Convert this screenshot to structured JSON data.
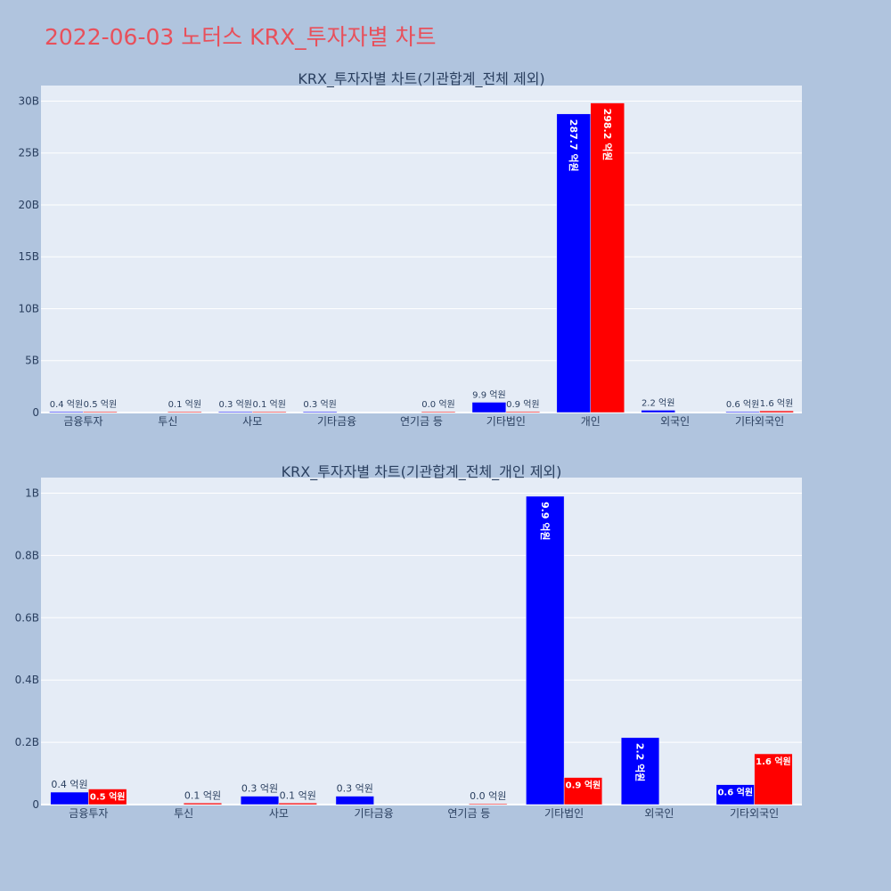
{
  "page_title": "2022-06-03 노터스 KRX_투자자별 차트",
  "colors": {
    "page_bg": "#b0c4de",
    "plot_bg": "#e5ecf6",
    "buy": "#0000ff",
    "sell": "#ff0000",
    "title": "#e8505b",
    "text": "#2a3f5f"
  },
  "chart_data": [
    {
      "type": "bar",
      "title": "KRX_투자자별 차트(기관합계_전체 제외)",
      "categories": [
        "금융투자",
        "투신",
        "사모",
        "기타금융",
        "연기금 등",
        "기타법인",
        "개인",
        "외국인",
        "기타외국인"
      ],
      "y_ticks": [
        0,
        5,
        10,
        15,
        20,
        25,
        30
      ],
      "y_tick_labels": [
        "0",
        "5B",
        "10B",
        "15B",
        "20B",
        "25B",
        "30B"
      ],
      "ylim": [
        0,
        31.5
      ],
      "y_unit": "B",
      "series": [
        {
          "color": "#0000ff",
          "values": [
            0.04,
            null,
            0.03,
            0.03,
            null,
            0.99,
            28.77,
            0.22,
            0.06
          ],
          "labels": [
            "0.4 억원",
            "",
            "0.3 억원",
            "0.3 억원",
            "",
            "9.9 억원",
            "287.7 억원",
            "2.2 억원",
            "0.6 억원"
          ]
        },
        {
          "color": "#ff0000",
          "values": [
            0.05,
            0.01,
            0.01,
            null,
            0.0,
            0.09,
            29.82,
            null,
            0.16
          ],
          "labels": [
            "0.5 억원",
            "0.1 억원",
            "0.1 억원",
            "",
            "0.0 억원",
            "0.9 억원",
            "298.2 억원",
            "",
            "1.6 억원"
          ]
        }
      ]
    },
    {
      "type": "bar",
      "title": "KRX_투자자별 차트(기관합계_전체_개인 제외)",
      "categories": [
        "금융투자",
        "투신",
        "사모",
        "기타금융",
        "연기금 등",
        "기타법인",
        "외국인",
        "기타외국인"
      ],
      "y_ticks": [
        0,
        0.2,
        0.4,
        0.6,
        0.8,
        1.0
      ],
      "y_tick_labels": [
        "0",
        "0.2B",
        "0.4B",
        "0.6B",
        "0.8B",
        "1B"
      ],
      "ylim": [
        0,
        1.05
      ],
      "y_unit": "B",
      "series": [
        {
          "color": "#0000ff",
          "values": [
            0.04,
            null,
            0.027,
            0.027,
            null,
            0.99,
            0.215,
            0.064
          ],
          "labels": [
            "0.4 억원",
            "",
            "0.3 억원",
            "0.3 억원",
            "",
            "9.9 억원",
            "2.2 억원",
            "0.6 억원"
          ]
        },
        {
          "color": "#ff0000",
          "values": [
            0.05,
            0.005,
            0.005,
            null,
            0.002,
            0.087,
            null,
            0.163
          ],
          "labels": [
            "0.5 억원",
            "0.1 억원",
            "0.1 억원",
            "",
            "0.0 억원",
            "0.9 억원",
            "",
            "1.6 억원"
          ]
        }
      ]
    }
  ]
}
